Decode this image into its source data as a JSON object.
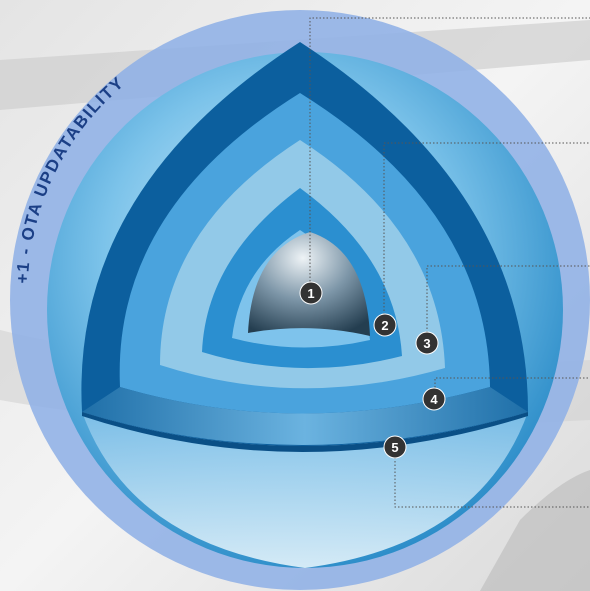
{
  "ring_label": "+1 - OTA UPDATABILITY",
  "colors": {
    "outer_ring": "#8fb0e6",
    "ring_text": "#1b3f86",
    "layer_outer": "#0c5f9e",
    "layer_2": "#2b8fd0",
    "layer_3": "#92c9e8",
    "layer_4": "#4aa3dd",
    "core_top": "#e8eef2",
    "core_bottom": "#2a4658",
    "badge": "#333333",
    "leader_line": "#555555"
  },
  "markers": [
    {
      "id": "marker-1",
      "label": "1"
    },
    {
      "id": "marker-2",
      "label": "2"
    },
    {
      "id": "marker-3",
      "label": "3"
    },
    {
      "id": "marker-4",
      "label": "4"
    },
    {
      "id": "marker-5",
      "label": "5"
    }
  ]
}
